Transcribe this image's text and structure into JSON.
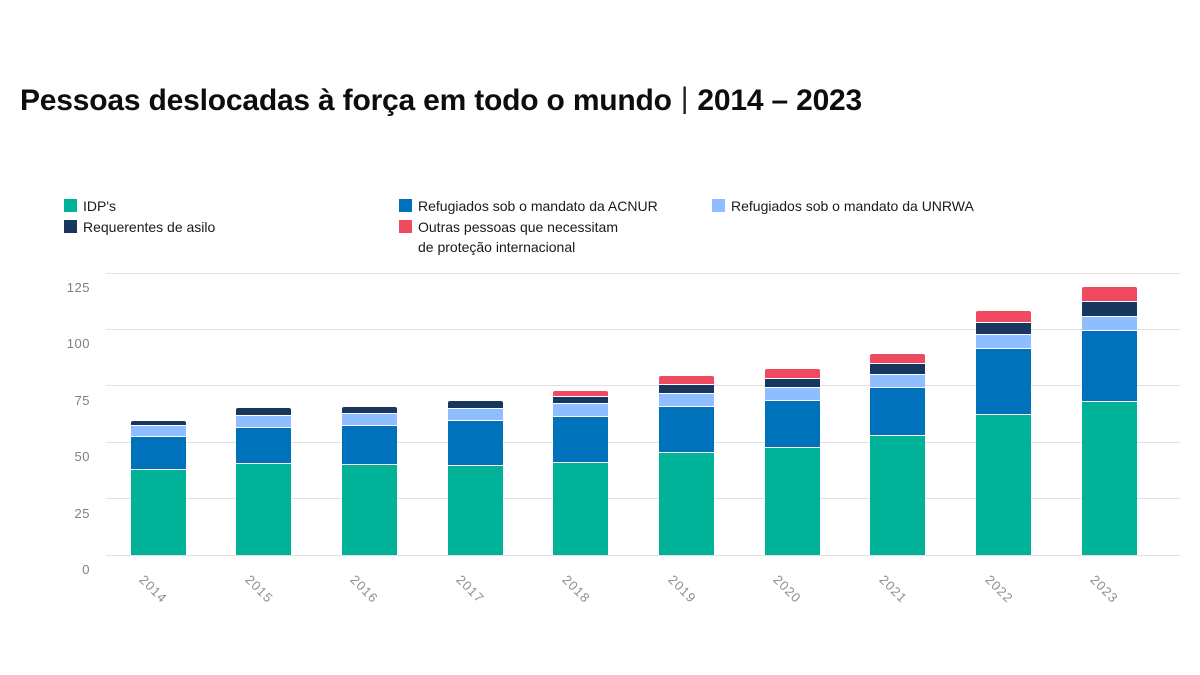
{
  "title": {
    "main": "Pessoas deslocadas à força em todo o mundo",
    "separator": "|",
    "period": "2014 – 2023"
  },
  "legend": {
    "columns": [
      [
        {
          "key": "idps",
          "label": "IDP's",
          "color": "#00B398"
        },
        {
          "key": "asilo",
          "label": "Requerentes de asilo",
          "color": "#18375F"
        }
      ],
      [
        {
          "key": "acnur",
          "label": "Refugiados sob o mandato da ACNUR",
          "color": "#0072BC"
        },
        {
          "key": "outras",
          "label": "Outras pessoas que necessitam\nde proteção internacional",
          "color": "#EF4A60"
        }
      ],
      [
        {
          "key": "unrwa",
          "label": "Refugiados sob o mandato da UNRWA",
          "color": "#8EBEFF"
        }
      ]
    ]
  },
  "axes": {
    "y_tick_labels": [
      "0",
      "25",
      "50",
      "75",
      "100",
      "125"
    ],
    "x_tick_labels": [
      "2014",
      "2015",
      "2016",
      "2017",
      "2018",
      "2019",
      "2020",
      "2021",
      "2022",
      "2023"
    ]
  },
  "colors": {
    "idps": "#00B398",
    "acnur": "#0072BC",
    "unrwa": "#8EBEFF",
    "asilo": "#18375F",
    "outras": "#EF4A60",
    "grid": "#E1E1E1",
    "tick_text": "#8C8E91",
    "title_text": "#0D0D0D",
    "background": "#FFFFFF"
  },
  "chart_data": {
    "type": "bar",
    "stacked": true,
    "title": "Pessoas deslocadas à força em todo o mundo | 2014 – 2023",
    "categories": [
      "2014",
      "2015",
      "2016",
      "2017",
      "2018",
      "2019",
      "2020",
      "2021",
      "2022",
      "2023"
    ],
    "series": [
      {
        "key": "idps",
        "name": "IDP's",
        "color": "#00B398",
        "values": [
          38.2,
          40.8,
          40.3,
          40.0,
          41.3,
          45.7,
          48.0,
          53.2,
          62.5,
          68.3
        ]
      },
      {
        "key": "acnur",
        "name": "Refugiados sob o mandato da ACNUR",
        "color": "#0072BC",
        "values": [
          14.4,
          16.1,
          17.2,
          19.9,
          20.4,
          20.4,
          20.7,
          21.3,
          29.4,
          31.6
        ]
      },
      {
        "key": "unrwa",
        "name": "Refugiados sob o mandato da UNRWA",
        "color": "#8EBEFF",
        "values": [
          5.1,
          5.2,
          5.3,
          5.4,
          5.5,
          5.6,
          5.7,
          5.8,
          5.9,
          6.0
        ]
      },
      {
        "key": "asilo",
        "name": "Requerentes de asilo",
        "color": "#18375F",
        "values": [
          1.8,
          3.2,
          2.8,
          3.1,
          3.5,
          4.2,
          4.1,
          4.6,
          5.4,
          6.9
        ]
      },
      {
        "key": "outras",
        "name": "Outras pessoas que necessitam de proteção internacional",
        "color": "#EF4A60",
        "values": [
          0,
          0,
          0,
          0,
          2.1,
          3.6,
          3.9,
          4.4,
          5.2,
          5.8
        ]
      }
    ],
    "xlabel": "",
    "ylabel": "",
    "ylim": [
      0,
      125
    ],
    "yticks": [
      0,
      25,
      50,
      75,
      100,
      125
    ],
    "grid": true,
    "legend_position": "top"
  }
}
